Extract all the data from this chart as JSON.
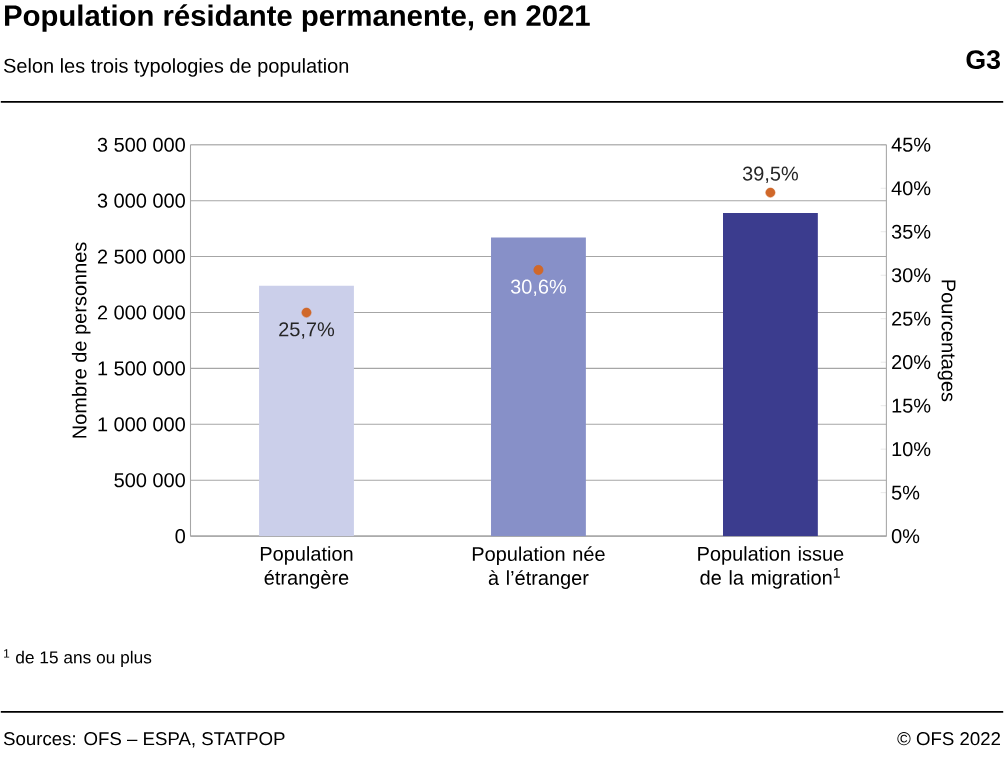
{
  "chart_data": {
    "type": "bar",
    "title": "Population résidante permanente, en 2021",
    "subtitle": "Selon les trois typologies de population",
    "categories": [
      "Population étrangère",
      "Population née à l’étranger",
      "Population issue de la migration$^{1}$"
    ],
    "series": [
      {
        "colors": [
          "#cbcfea",
          "#8790c8",
          "#3b3c8e"
        ],
        "values": [
          2240000,
          2670000,
          2890000
        ]
      },
      {
        "type": "scatter",
        "axis": "y2",
        "color": "#d0682a",
        "marker": "circle",
        "values": [
          25.7,
          30.6,
          39.5
        ],
        "value_labels": [
          "25,7%",
          "30,6%",
          "39,5%"
        ]
      }
    ],
    "ylabel": "Nombre de personnes",
    "y2label": "Pourcentages",
    "ylim": [
      0,
      3500000
    ],
    "yticks": [
      0,
      {
        "value": 500000,
        "label": "500 000"
      },
      {
        "value": 1000000,
        "label": "1 000 000"
      },
      {
        "value": 1500000,
        "label": "1 500 000"
      },
      {
        "value": 2000000,
        "label": "2 000 000"
      },
      {
        "value": 2500000,
        "label": "2 500 000"
      },
      {
        "value": 3000000,
        "label": "3 000 000"
      },
      {
        "value": 3500000,
        "label": "3 500 000"
      }
    ],
    "y2lim": [
      0,
      45
    ],
    "y2ticks": [
      {
        "value": 0,
        "label": "0%"
      },
      {
        "value": 5,
        "label": "5%"
      },
      {
        "value": 10,
        "label": "10%"
      },
      {
        "value": 15,
        "label": "15%"
      },
      {
        "value": 20,
        "label": "20%"
      },
      {
        "value": 25,
        "label": "25%"
      },
      {
        "value": 30,
        "label": "30%"
      },
      {
        "value": 35,
        "label": "35%"
      },
      {
        "value": 40,
        "label": "40%"
      },
      {
        "value": 45,
        "label": "45%"
      }
    ],
    "grid": "y",
    "annotations": [
      "G3",
      "$^{1}$ de 15 ans ou plus",
      "Sources: OFS – ESPA, STATPOP",
      "© OFS 2022"
    ]
  }
}
